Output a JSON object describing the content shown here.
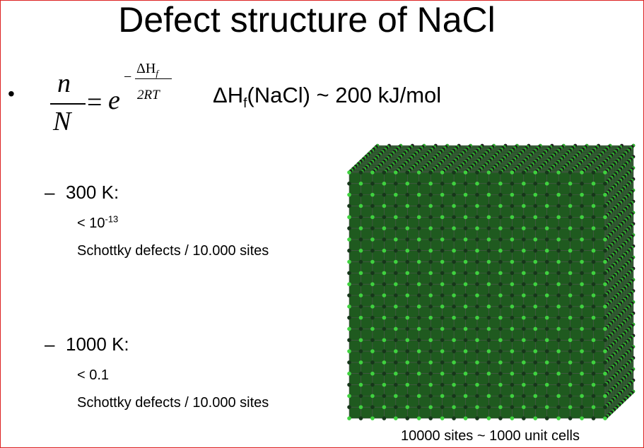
{
  "title": "Defect structure of NaCl",
  "bullet": {
    "marker": "•",
    "formula": {
      "numerator": "n",
      "denominator": "N",
      "equals": "=",
      "base": "e",
      "exponent": {
        "sign": "−",
        "numerator": "ΔH",
        "numerator_sub": "f",
        "denominator": "2RT"
      }
    },
    "enthalpy": {
      "symbol": "ΔH",
      "subscript": "f",
      "text": "(NaCl) ~ 200 kJ/mol"
    }
  },
  "items": [
    {
      "marker": "–",
      "label": "300 K:",
      "lines": [
        {
          "text": "< 10",
          "sup": "-13"
        },
        {
          "text": "Schottky defects / 10.000 sites"
        }
      ]
    },
    {
      "marker": "–",
      "label": "1000 K:",
      "lines": [
        {
          "text": "< 0.1"
        },
        {
          "text": "Schottky defects / 10.000 sites"
        }
      ]
    }
  ],
  "figure": {
    "caption": "10000 sites ~ 1000 unit cells"
  }
}
